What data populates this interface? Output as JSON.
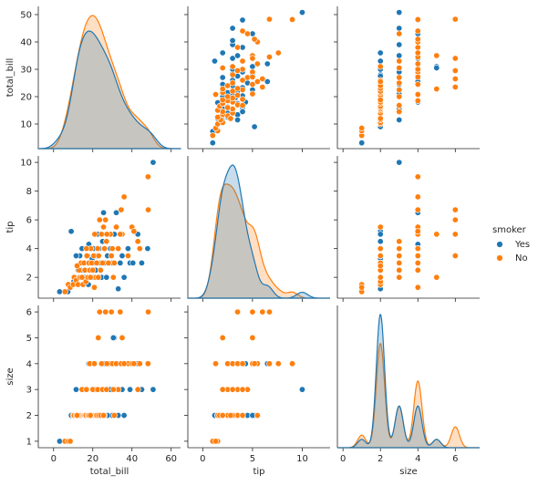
{
  "chart_data": {
    "type": "scatter-matrix",
    "variables": [
      "total_bill",
      "tip",
      "size"
    ],
    "axis_labels": {
      "total_bill": "total_bill",
      "tip": "tip",
      "size": "size"
    },
    "x_ticks": {
      "total_bill": [
        0,
        20,
        40,
        60
      ],
      "tip": [
        0,
        5,
        10
      ],
      "size": [
        0,
        2,
        4,
        6
      ]
    },
    "y_ticks": {
      "total_bill": [
        10,
        20,
        30,
        40,
        50
      ],
      "tip": [
        2,
        4,
        6,
        8,
        10
      ],
      "size": [
        1,
        2,
        3,
        4,
        5,
        6
      ]
    },
    "xlim": {
      "total_bill": [
        -7.8,
        64.8
      ],
      "tip": [
        -1.5,
        12.8
      ],
      "size": [
        -0.3,
        7.3
      ]
    },
    "ylim": {
      "total_bill": [
        1.0,
        53.0
      ],
      "tip": [
        0.55,
        10.45
      ],
      "size": [
        0.75,
        6.25
      ]
    },
    "hue": {
      "title": "smoker",
      "levels": [
        {
          "name": "Yes",
          "color": "#1f77b4"
        },
        {
          "name": "No",
          "color": "#ff7f0e"
        }
      ]
    },
    "points": {
      "Yes": [
        [
          3.1,
          1.0,
          1
        ],
        [
          7.3,
          1.0,
          1
        ],
        [
          10.3,
          1.7,
          2
        ],
        [
          11.0,
          2.0,
          2
        ],
        [
          12.0,
          1.5,
          2
        ],
        [
          13.0,
          2.0,
          2
        ],
        [
          13.4,
          3.5,
          2
        ],
        [
          14.0,
          2.5,
          2
        ],
        [
          15.0,
          3.0,
          3
        ],
        [
          16.0,
          4.0,
          2
        ],
        [
          16.3,
          2.5,
          2
        ],
        [
          17.0,
          2.0,
          2
        ],
        [
          17.5,
          3.5,
          2
        ],
        [
          18.0,
          4.3,
          4
        ],
        [
          18.3,
          3.0,
          2
        ],
        [
          19.0,
          2.5,
          2
        ],
        [
          19.7,
          3.3,
          2
        ],
        [
          20.0,
          2.0,
          2
        ],
        [
          20.3,
          4.0,
          2
        ],
        [
          21.0,
          3.0,
          3
        ],
        [
          21.5,
          2.5,
          2
        ],
        [
          22.0,
          3.5,
          2
        ],
        [
          22.7,
          2.0,
          2
        ],
        [
          23.3,
          4.0,
          2
        ],
        [
          24.0,
          3.0,
          2
        ],
        [
          24.5,
          2.0,
          3
        ],
        [
          25.0,
          4.5,
          2
        ],
        [
          26.0,
          3.0,
          4
        ],
        [
          27.0,
          2.0,
          2
        ],
        [
          28.0,
          5.0,
          2
        ],
        [
          28.5,
          3.0,
          4
        ],
        [
          29.0,
          4.0,
          3
        ],
        [
          30.0,
          3.0,
          2
        ],
        [
          31.0,
          5.0,
          5
        ],
        [
          32.0,
          6.5,
          4
        ],
        [
          33.0,
          1.2,
          2
        ],
        [
          34.0,
          3.0,
          4
        ],
        [
          35.0,
          3.5,
          3
        ],
        [
          38.0,
          4.0,
          4
        ],
        [
          39.0,
          3.0,
          3
        ],
        [
          40.5,
          3.0,
          4
        ],
        [
          43.0,
          5.0,
          4
        ],
        [
          45.0,
          3.0,
          3
        ],
        [
          48.0,
          4.0,
          4
        ],
        [
          50.8,
          10.0,
          3
        ],
        [
          9.0,
          5.2,
          2
        ],
        [
          12.5,
          2.5,
          2
        ],
        [
          15.5,
          2.0,
          3
        ],
        [
          17.8,
          1.5,
          2
        ],
        [
          22.5,
          5.0,
          2
        ],
        [
          25.5,
          6.5,
          4
        ],
        [
          27.5,
          3.5,
          2
        ],
        [
          30.5,
          2.0,
          5
        ],
        [
          36.0,
          2.0,
          2
        ],
        [
          11.5,
          3.5,
          3
        ],
        [
          14.5,
          4.0,
          2
        ]
      ],
      "No": [
        [
          5.8,
          1.0,
          1
        ],
        [
          7.5,
          1.5,
          1
        ],
        [
          8.5,
          1.3,
          1
        ],
        [
          10.0,
          1.5,
          2
        ],
        [
          10.5,
          2.0,
          2
        ],
        [
          11.5,
          1.8,
          2
        ],
        [
          12.5,
          1.5,
          2
        ],
        [
          13.0,
          2.5,
          2
        ],
        [
          13.5,
          2.0,
          2
        ],
        [
          14.0,
          3.0,
          2
        ],
        [
          14.5,
          2.0,
          3
        ],
        [
          15.0,
          1.5,
          2
        ],
        [
          15.5,
          3.0,
          2
        ],
        [
          16.0,
          2.5,
          2
        ],
        [
          16.5,
          1.7,
          2
        ],
        [
          17.0,
          3.5,
          3
        ],
        [
          17.5,
          2.0,
          2
        ],
        [
          18.0,
          3.0,
          2
        ],
        [
          18.5,
          2.5,
          4
        ],
        [
          19.0,
          4.0,
          2
        ],
        [
          19.5,
          3.0,
          2
        ],
        [
          20.0,
          2.5,
          3
        ],
        [
          20.5,
          3.5,
          2
        ],
        [
          21.0,
          5.0,
          4
        ],
        [
          21.5,
          2.0,
          2
        ],
        [
          22.0,
          3.0,
          2
        ],
        [
          22.5,
          4.0,
          3
        ],
        [
          23.0,
          3.5,
          2
        ],
        [
          24.0,
          2.5,
          2
        ],
        [
          24.5,
          5.0,
          4
        ],
        [
          25.0,
          3.0,
          3
        ],
        [
          26.0,
          4.0,
          2
        ],
        [
          27.0,
          4.5,
          3
        ],
        [
          28.0,
          3.0,
          4
        ],
        [
          29.0,
          5.0,
          4
        ],
        [
          30.0,
          4.0,
          4
        ],
        [
          31.0,
          3.0,
          2
        ],
        [
          32.0,
          5.5,
          4
        ],
        [
          33.0,
          4.0,
          3
        ],
        [
          34.5,
          6.7,
          4
        ],
        [
          35.0,
          5.0,
          5
        ],
        [
          38.0,
          3.5,
          4
        ],
        [
          40.0,
          5.5,
          4
        ],
        [
          43.0,
          4.5,
          3
        ],
        [
          48.2,
          9.0,
          4
        ],
        [
          48.3,
          6.7,
          6
        ],
        [
          27.2,
          5.0,
          4
        ],
        [
          23.5,
          6.0,
          6
        ],
        [
          26.5,
          6.0,
          6
        ],
        [
          29.5,
          3.5,
          6
        ],
        [
          18.8,
          2.0,
          2
        ],
        [
          16.8,
          4.0,
          3
        ],
        [
          25.5,
          5.5,
          2
        ],
        [
          34.0,
          5.0,
          6
        ],
        [
          12.0,
          2.8,
          2
        ],
        [
          44.0,
          4.0,
          4
        ],
        [
          36.0,
          7.6,
          4
        ],
        [
          41.0,
          5.2,
          4
        ],
        [
          20.8,
          1.3,
          4
        ],
        [
          30.5,
          2.0,
          3
        ],
        [
          22.8,
          2.0,
          5
        ]
      ]
    },
    "density_note_series": [
      "Yes",
      "No"
    ]
  }
}
